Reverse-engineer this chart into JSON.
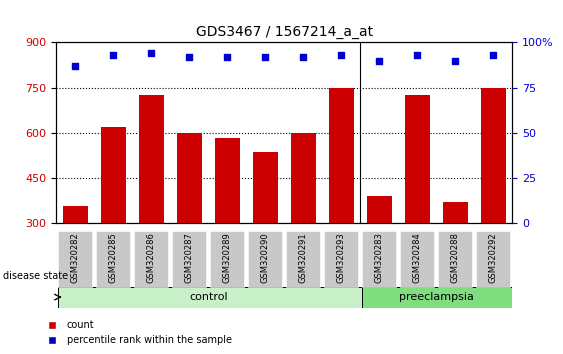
{
  "title": "GDS3467 / 1567214_a_at",
  "samples": [
    "GSM320282",
    "GSM320285",
    "GSM320286",
    "GSM320287",
    "GSM320289",
    "GSM320290",
    "GSM320291",
    "GSM320293",
    "GSM320283",
    "GSM320284",
    "GSM320288",
    "GSM320292"
  ],
  "counts": [
    355,
    620,
    725,
    598,
    582,
    535,
    598,
    748,
    390,
    725,
    370,
    748
  ],
  "percentiles": [
    87,
    93,
    94,
    92,
    92,
    92,
    92,
    93,
    90,
    93,
    90,
    93
  ],
  "bar_color": "#cc0000",
  "dot_color": "#0000cc",
  "ylim_left": [
    300,
    900
  ],
  "ylim_right": [
    0,
    100
  ],
  "yticks_left": [
    300,
    450,
    600,
    750,
    900
  ],
  "yticks_right": [
    0,
    25,
    50,
    75,
    100
  ],
  "control_color": "#c8f0c8",
  "preeclampsia_color": "#80dd80",
  "background_color": "#ffffff",
  "tick_bg_color": "#c8c8c8",
  "n_control": 8,
  "n_total": 12
}
